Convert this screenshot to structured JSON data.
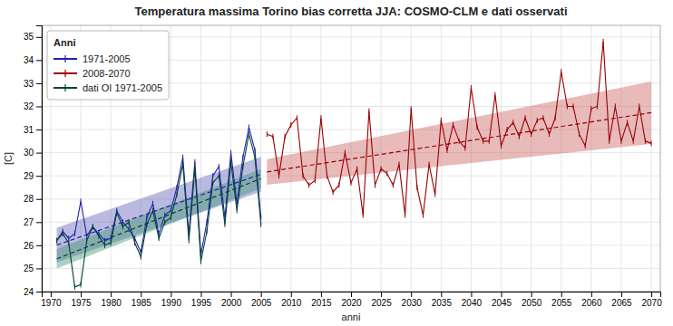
{
  "chart_data": {
    "type": "line",
    "title": "Temperatura massima Torino bias corretta JJA: COSMO-CLM e dati osservati",
    "xlabel": "anni",
    "ylabel": "[C]",
    "legend_title": "Anni",
    "legend": "upper-left",
    "grid": true,
    "xlim": [
      1968.5,
      2071.5
    ],
    "ylim": [
      24.0,
      35.5
    ],
    "xticks": [
      1970,
      1975,
      1980,
      1985,
      1990,
      1995,
      2000,
      2005,
      2010,
      2015,
      2020,
      2025,
      2030,
      2035,
      2040,
      2045,
      2050,
      2055,
      2060,
      2065,
      2070
    ],
    "yticks": [
      24,
      25,
      26,
      27,
      28,
      29,
      30,
      31,
      32,
      33,
      34,
      35
    ],
    "series": [
      {
        "name": "1971-2005",
        "color": "#2222aa",
        "marker": "vline",
        "line_style": "solid",
        "x": [
          1971,
          1972,
          1973,
          1974,
          1975,
          1976,
          1977,
          1978,
          1979,
          1980,
          1981,
          1982,
          1983,
          1984,
          1985,
          1986,
          1987,
          1988,
          1989,
          1990,
          1991,
          1992,
          1993,
          1994,
          1995,
          1996,
          1997,
          1998,
          1999,
          2000,
          2001,
          2002,
          2003,
          2004,
          2005
        ],
        "values": [
          26.2,
          26.6,
          26.3,
          26.5,
          27.9,
          26.4,
          26.8,
          26.5,
          26.2,
          26.3,
          27.5,
          27.0,
          26.7,
          26.3,
          25.7,
          27.2,
          27.8,
          26.5,
          27.3,
          27.5,
          28.5,
          29.8,
          26.5,
          29.6,
          25.6,
          27.0,
          29.0,
          29.4,
          27.2,
          30.0,
          27.8,
          29.8,
          31.1,
          30.1,
          27.2
        ],
        "trend": {
          "x": [
            1971,
            2005
          ],
          "values": [
            26.0081,
            29.0662
          ],
          "line_style": "dashed"
        },
        "band": {
          "x": [
            1971,
            2005
          ],
          "lower": [
            25.2581,
            28.3162
          ],
          "upper": [
            26.7581,
            29.8162
          ],
          "color": "#6666bb"
        }
      },
      {
        "name": "2008-2070",
        "color": "#990000",
        "marker": "vline",
        "line_style": "solid",
        "x": [
          2006,
          2007,
          2008,
          2009,
          2010,
          2011,
          2012,
          2013,
          2014,
          2015,
          2016,
          2017,
          2018,
          2019,
          2020,
          2021,
          2022,
          2023,
          2024,
          2025,
          2026,
          2027,
          2028,
          2029,
          2030,
          2031,
          2032,
          2033,
          2034,
          2035,
          2036,
          2037,
          2038,
          2039,
          2040,
          2041,
          2042,
          2043,
          2044,
          2045,
          2046,
          2047,
          2048,
          2049,
          2050,
          2051,
          2052,
          2053,
          2054,
          2055,
          2056,
          2057,
          2058,
          2059,
          2060,
          2061,
          2062,
          2063,
          2064,
          2065,
          2066,
          2067,
          2068,
          2069,
          2070
        ],
        "values": [
          30.8,
          30.7,
          29.0,
          30.7,
          31.2,
          31.5,
          29.0,
          28.6,
          28.8,
          31.5,
          29.0,
          28.3,
          28.6,
          30.0,
          28.7,
          29.3,
          27.3,
          31.8,
          28.6,
          29.3,
          29.1,
          28.6,
          29.5,
          27.3,
          31.9,
          28.5,
          27.3,
          29.5,
          28.2,
          31.4,
          30.1,
          31.2,
          30.5,
          30.2,
          32.8,
          31.1,
          30.5,
          30.5,
          32.5,
          30.3,
          31.0,
          31.3,
          30.7,
          31.5,
          30.8,
          31.4,
          31.5,
          30.8,
          31.5,
          33.5,
          32.0,
          32.0,
          30.8,
          30.3,
          31.9,
          32.0,
          34.8,
          30.5,
          32.0,
          30.5,
          31.3,
          30.5,
          32.0,
          30.5,
          30.4
        ],
        "trend": {
          "x": [
            2006,
            2070
          ],
          "values": [
            29.1691,
            31.7294
          ],
          "line_style": "dashed"
        },
        "band": {
          "x": [
            2006,
            2070
          ],
          "lower": [
            28.6191,
            30.3794
          ],
          "upper": [
            29.7191,
            33.0794
          ],
          "color": "#cc6666"
        }
      },
      {
        "name": "dati OI 1971-2005",
        "color": "#004433",
        "marker": "vline",
        "line_style": "solid",
        "x": [
          1971,
          1972,
          1973,
          1974,
          1975,
          1976,
          1977,
          1978,
          1979,
          1980,
          1981,
          1982,
          1983,
          1984,
          1985,
          1986,
          1987,
          1988,
          1989,
          1990,
          1991,
          1992,
          1993,
          1994,
          1995,
          1996,
          1997,
          1998,
          1999,
          2000,
          2001,
          2002,
          2003,
          2004,
          2005
        ],
        "values": [
          26.2,
          26.5,
          26.1,
          24.2,
          24.3,
          26.2,
          26.8,
          26.4,
          26.0,
          26.1,
          27.4,
          26.8,
          27.0,
          26.1,
          25.5,
          26.9,
          27.5,
          26.3,
          27.0,
          27.2,
          28.2,
          29.5,
          26.2,
          29.3,
          25.3,
          26.6,
          28.7,
          29.0,
          26.9,
          29.6,
          27.5,
          29.4,
          30.8,
          29.8,
          26.9
        ],
        "trend": {
          "x": [
            1971,
            2005
          ],
          "values": [
            25.4157,
            28.8814
          ],
          "line_style": "dashed"
        },
        "band": {
          "x": [
            1971,
            2005
          ],
          "lower": [
            24.9957,
            28.4614
          ],
          "upper": [
            25.8357,
            29.3014
          ],
          "color": "#449977"
        }
      }
    ]
  }
}
